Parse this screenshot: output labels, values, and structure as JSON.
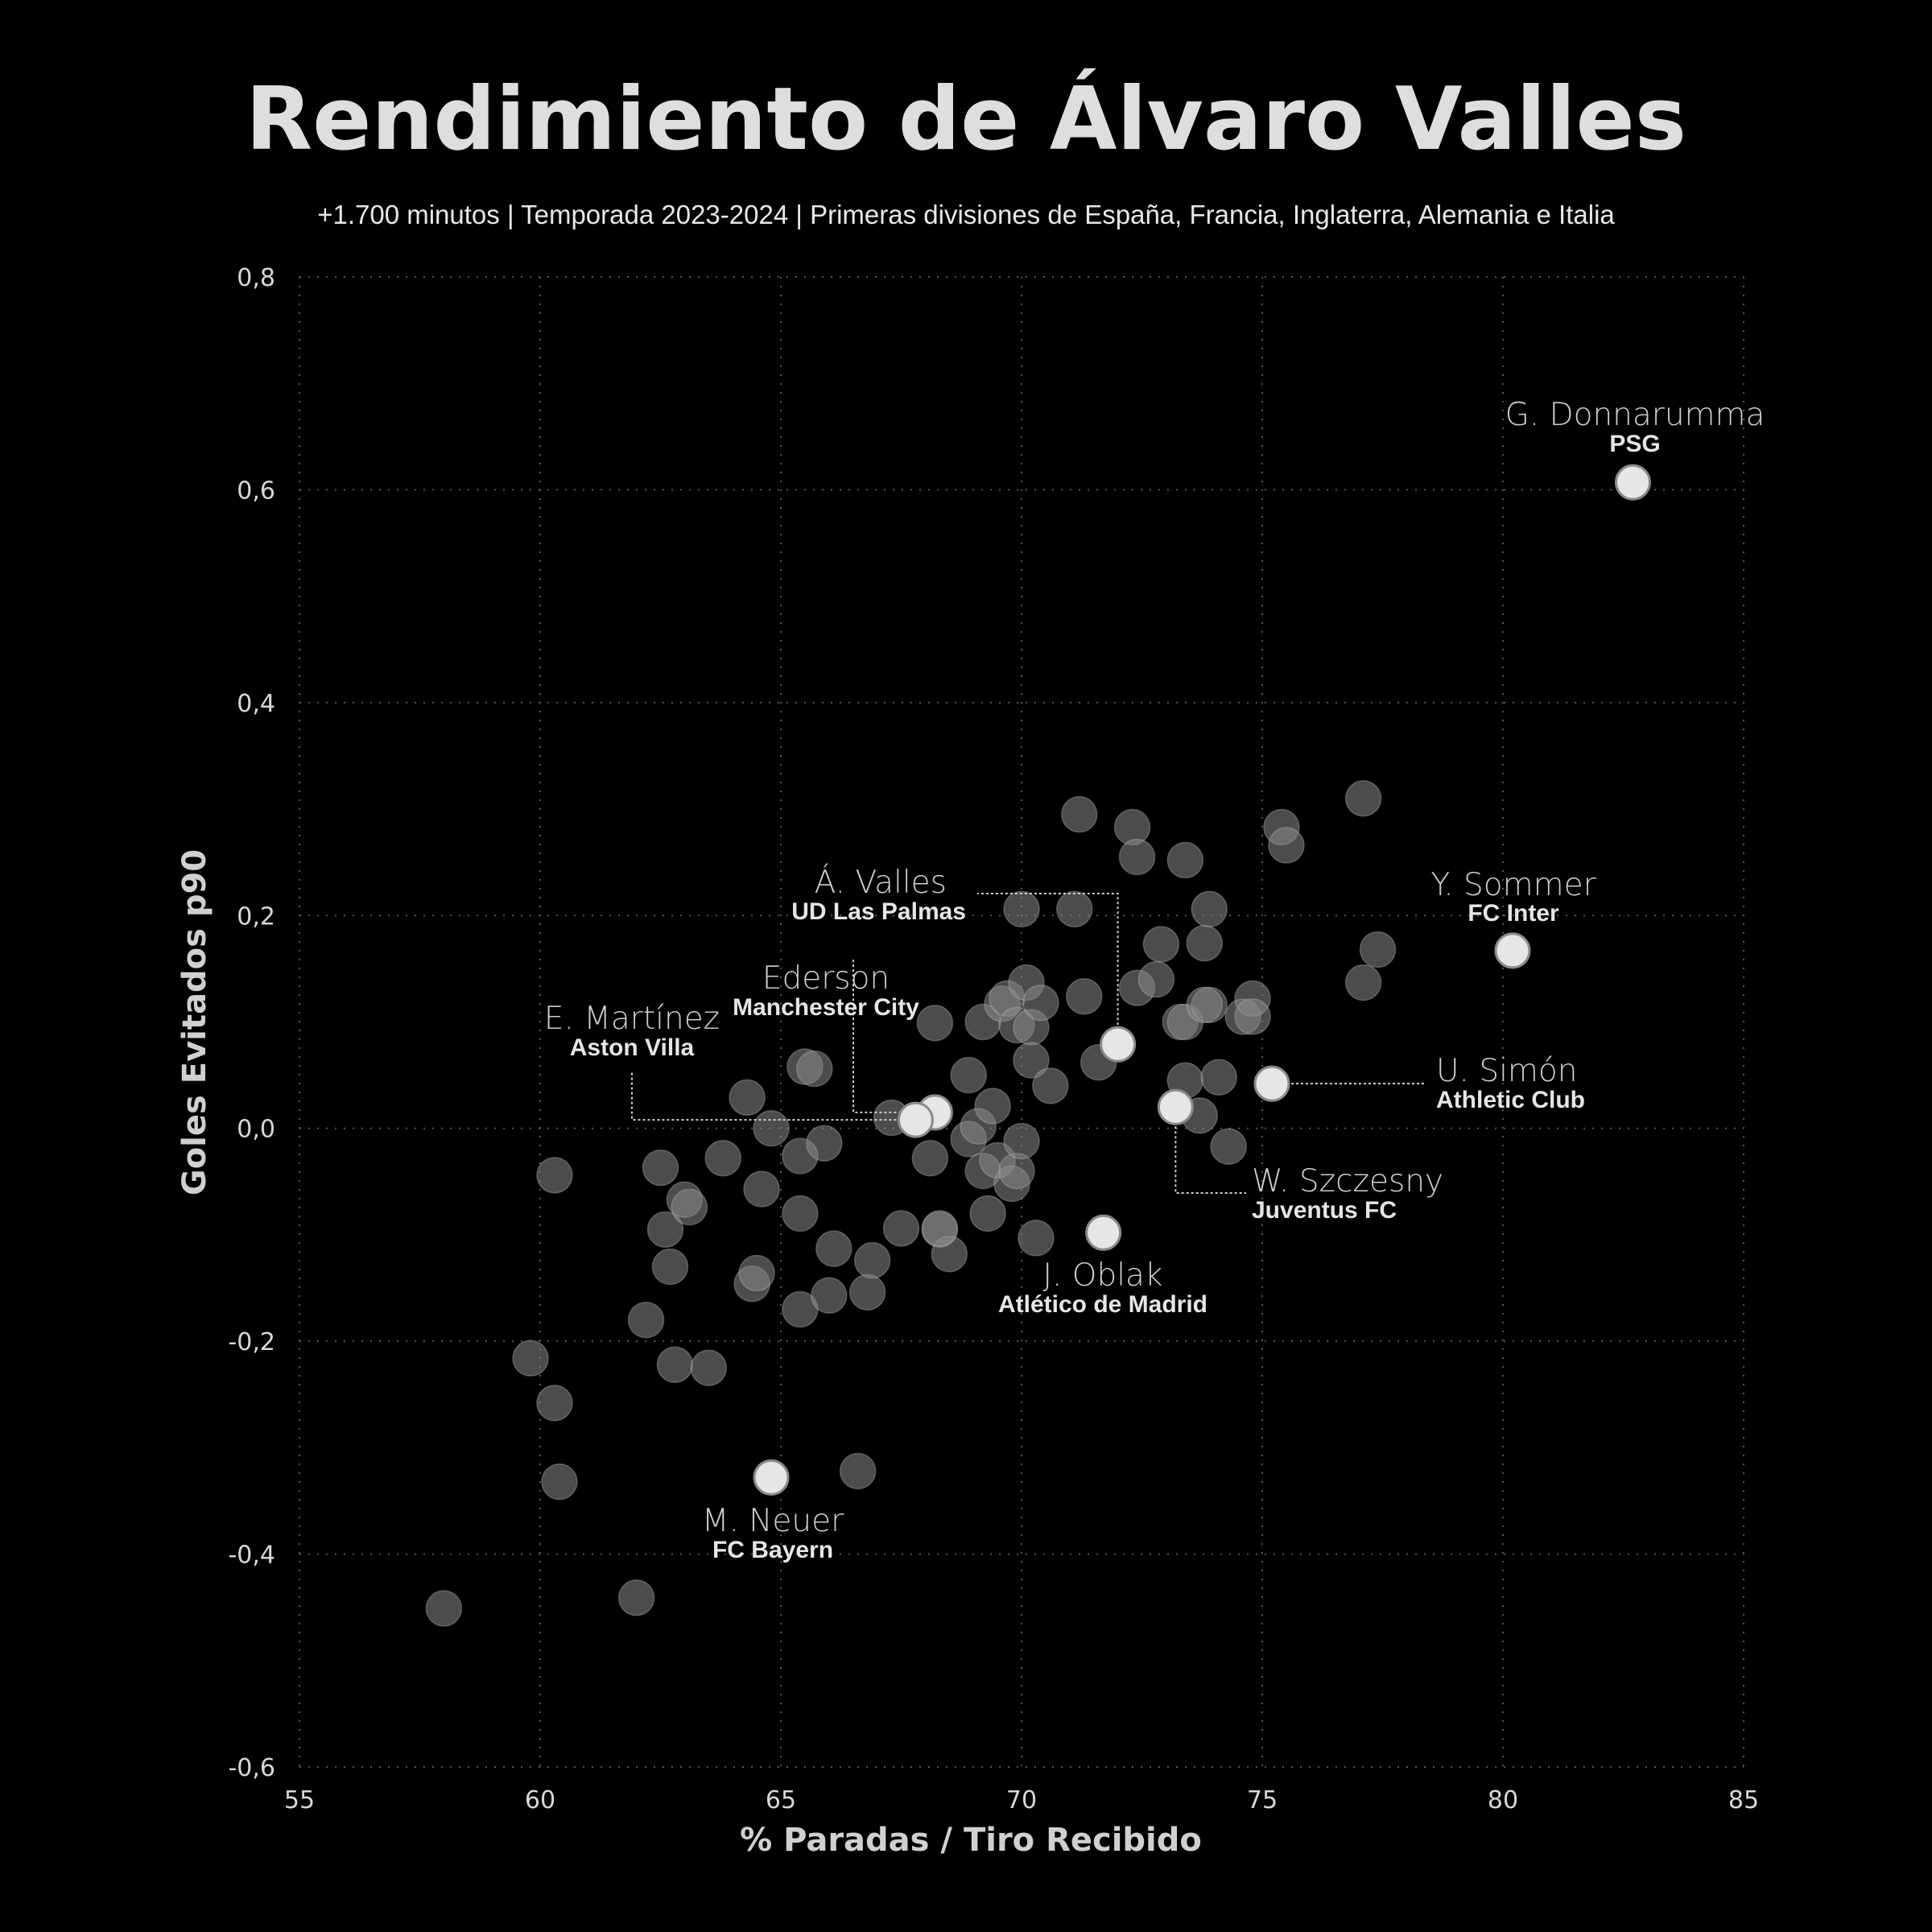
{
  "chart_data": {
    "type": "scatter",
    "title": "Rendimiento de Álvaro Valles",
    "subtitle": "+1.700 minutos | Temporada 2023-2024 | Primeras divisiones de España, Francia, Inglaterra, Alemania e Italia",
    "xlabel": "% Paradas / Tiro Recibido",
    "ylabel": "Goles Evitados p90",
    "xlim": [
      55,
      85
    ],
    "ylim": [
      -0.6,
      0.8
    ],
    "xticks": [
      55,
      60,
      65,
      70,
      75,
      80,
      85
    ],
    "xtick_labels": [
      "55",
      "60",
      "65",
      "70",
      "75",
      "80",
      "85"
    ],
    "yticks": [
      -0.6,
      -0.4,
      -0.2,
      0.0,
      0.2,
      0.4,
      0.6,
      0.8
    ],
    "ytick_labels": [
      "-0,6",
      "-0,4",
      "-0,2",
      "0,0",
      "0,2",
      "0,4",
      "0,6",
      "0,8"
    ],
    "grid": true,
    "colors": {
      "background": "#000000",
      "point": "#8a8a8a",
      "highlight": "#e6e6e6"
    },
    "background_points": [
      [
        58.0,
        -0.451
      ],
      [
        60.3,
        -0.044
      ],
      [
        60.4,
        -0.332
      ],
      [
        60.3,
        -0.258
      ],
      [
        59.8,
        -0.216
      ],
      [
        62.0,
        -0.441
      ],
      [
        62.2,
        -0.18
      ],
      [
        62.5,
        -0.037
      ],
      [
        62.6,
        -0.095
      ],
      [
        62.7,
        -0.13
      ],
      [
        62.8,
        -0.222
      ],
      [
        63.0,
        -0.067
      ],
      [
        63.1,
        -0.074
      ],
      [
        63.5,
        -0.225
      ],
      [
        63.8,
        -0.028
      ],
      [
        64.3,
        0.029
      ],
      [
        64.4,
        -0.146
      ],
      [
        64.5,
        -0.136
      ],
      [
        64.6,
        -0.057
      ],
      [
        64.8,
        0.0
      ],
      [
        65.4,
        -0.08
      ],
      [
        65.4,
        -0.17
      ],
      [
        65.5,
        0.058
      ],
      [
        65.7,
        0.056
      ],
      [
        65.4,
        -0.026
      ],
      [
        65.9,
        -0.014
      ],
      [
        66.1,
        -0.113
      ],
      [
        66.0,
        -0.157
      ],
      [
        66.6,
        -0.322
      ],
      [
        66.8,
        -0.154
      ],
      [
        66.9,
        -0.124
      ],
      [
        67.5,
        -0.094
      ],
      [
        67.3,
        0.01
      ],
      [
        68.1,
        -0.028
      ],
      [
        68.3,
        -0.095
      ],
      [
        68.2,
        0.099
      ],
      [
        68.5,
        -0.118
      ],
      [
        68.3,
        -0.094
      ],
      [
        68.9,
        0.05
      ],
      [
        68.9,
        -0.01
      ],
      [
        69.2,
        0.1
      ],
      [
        69.2,
        -0.04
      ],
      [
        69.1,
        0.002
      ],
      [
        69.3,
        -0.08
      ],
      [
        69.4,
        0.021
      ],
      [
        69.5,
        -0.03
      ],
      [
        69.6,
        0.117
      ],
      [
        69.8,
        -0.052
      ],
      [
        69.7,
        0.122
      ],
      [
        69.9,
        -0.04
      ],
      [
        69.9,
        0.097
      ],
      [
        70.0,
        -0.012
      ],
      [
        70.0,
        0.206
      ],
      [
        70.1,
        0.137
      ],
      [
        70.2,
        0.095
      ],
      [
        70.2,
        0.064
      ],
      [
        70.4,
        0.118
      ],
      [
        70.3,
        -0.103
      ],
      [
        70.6,
        0.04
      ],
      [
        71.1,
        0.206
      ],
      [
        71.3,
        0.124
      ],
      [
        71.2,
        0.295
      ],
      [
        71.6,
        0.062
      ],
      [
        72.3,
        0.283
      ],
      [
        72.4,
        0.132
      ],
      [
        72.4,
        0.255
      ],
      [
        72.8,
        0.14
      ],
      [
        72.9,
        0.173
      ],
      [
        73.3,
        0.1
      ],
      [
        73.4,
        0.252
      ],
      [
        73.4,
        0.1
      ],
      [
        73.4,
        0.045
      ],
      [
        73.7,
        0.012
      ],
      [
        73.8,
        0.174
      ],
      [
        73.9,
        0.206
      ],
      [
        73.9,
        0.116
      ],
      [
        73.8,
        0.116
      ],
      [
        74.1,
        0.048
      ],
      [
        74.3,
        -0.017
      ],
      [
        74.6,
        0.105
      ],
      [
        74.8,
        0.122
      ],
      [
        74.8,
        0.105
      ],
      [
        75.4,
        0.283
      ],
      [
        75.5,
        0.266
      ],
      [
        77.1,
        0.31
      ],
      [
        77.1,
        0.137
      ],
      [
        77.4,
        0.168
      ]
    ],
    "highlighted_players": [
      {
        "name": "G. Donnarumma",
        "team": "PSG",
        "x": 82.7,
        "y": 0.607
      },
      {
        "name": "Y. Sommer",
        "team": "FC Inter",
        "x": 80.2,
        "y": 0.167
      },
      {
        "name": "U. Simón",
        "team": "Athletic Club",
        "x": 75.2,
        "y": 0.042
      },
      {
        "name": "W. Szczesny",
        "team": "Juventus FC",
        "x": 73.2,
        "y": 0.02
      },
      {
        "name": "Á. Valles",
        "team": "UD Las Palmas",
        "x": 72.0,
        "y": 0.079
      },
      {
        "name": "J. Oblak",
        "team": "Atlético de Madrid",
        "x": 71.7,
        "y": -0.098
      },
      {
        "name": "Ederson",
        "team": "Manchester City",
        "x": 68.2,
        "y": 0.015
      },
      {
        "name": "E. Martínez",
        "team": "Aston Villa",
        "x": 67.8,
        "y": 0.008
      },
      {
        "name": "M. Neuer",
        "team": "FC Bayern",
        "x": 64.8,
        "y": -0.328
      }
    ]
  }
}
